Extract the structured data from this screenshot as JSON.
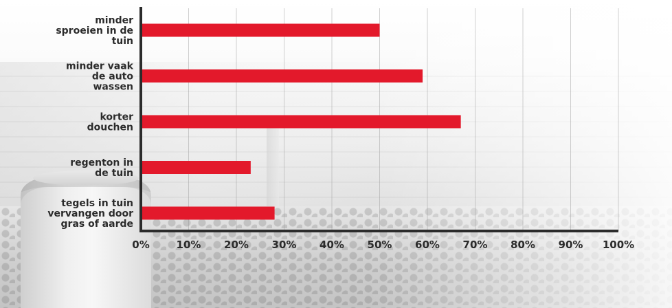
{
  "chart_data": {
    "type": "bar",
    "orientation": "horizontal",
    "categories": [
      [
        "minder",
        "sproeien in de",
        "tuin"
      ],
      [
        "minder vaak",
        "de auto",
        "wassen"
      ],
      [
        "korter",
        "douchen"
      ],
      [
        "regenton in",
        "de tuin"
      ],
      [
        "tegels in tuin",
        "vervangen door",
        "gras of aarde"
      ]
    ],
    "values": [
      50,
      59,
      67,
      23,
      28
    ],
    "xlim": [
      0,
      100
    ],
    "xticks": [
      0,
      10,
      20,
      30,
      40,
      50,
      60,
      70,
      80,
      90,
      100
    ],
    "tick_suffix": "%",
    "grid": true,
    "bar_color": "#e3192b",
    "axis_color": "#2b2b2b"
  }
}
